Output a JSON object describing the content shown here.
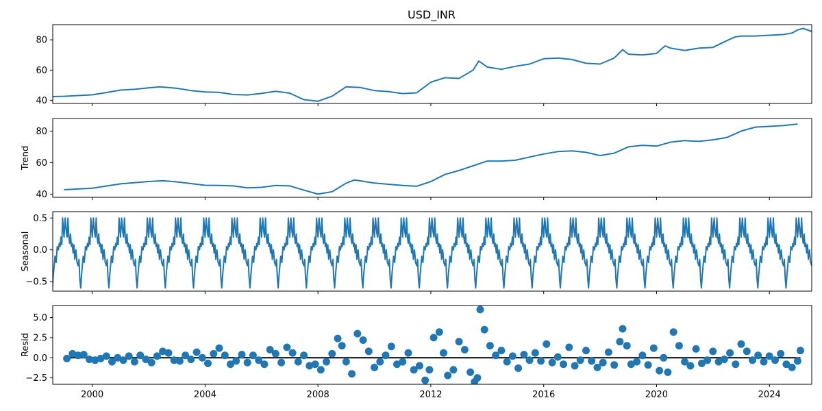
{
  "chart_data": [
    {
      "type": "line",
      "title": "USD_INR",
      "ylabel": "",
      "xlim": [
        1998.6,
        2025.5
      ],
      "ylim": [
        38,
        90
      ],
      "yticks": [
        40,
        60,
        80
      ],
      "ytick_labels": [
        "40",
        "60",
        "80"
      ],
      "color": "#1f77b4",
      "series": [
        {
          "x": [
            1998.6,
            1999.0,
            1999.5,
            2000.0,
            2000.5,
            2001.0,
            2001.5,
            2002.0,
            2002.4,
            2003.0,
            2003.5,
            2004.0,
            2004.5,
            2005.0,
            2005.5,
            2006.0,
            2006.5,
            2007.0,
            2007.5,
            2008.0,
            2008.5,
            2009.0,
            2009.5,
            2010.0,
            2010.5,
            2011.0,
            2011.5,
            2012.0,
            2012.5,
            2013.0,
            2013.5,
            2013.7,
            2014.0,
            2014.5,
            2015.0,
            2015.5,
            2016.0,
            2016.5,
            2017.0,
            2017.5,
            2018.0,
            2018.5,
            2018.8,
            2019.0,
            2019.5,
            2020.0,
            2020.3,
            2020.5,
            2021.0,
            2021.5,
            2022.0,
            2022.5,
            2022.8,
            2023.0,
            2023.5,
            2024.0,
            2024.5,
            2024.8,
            2025.0,
            2025.2,
            2025.5
          ],
          "y": [
            42.5,
            42.7,
            43.2,
            43.7,
            45.2,
            46.8,
            47.3,
            48.3,
            49.0,
            48.0,
            46.5,
            45.6,
            45.3,
            43.9,
            43.6,
            44.6,
            46.0,
            44.8,
            40.5,
            39.5,
            42.8,
            49.0,
            48.5,
            46.5,
            45.8,
            44.5,
            45.0,
            52.0,
            55.0,
            54.5,
            60.0,
            66.0,
            62.0,
            60.5,
            62.5,
            64.0,
            67.5,
            68.0,
            67.0,
            64.5,
            64.0,
            68.0,
            73.5,
            70.5,
            70.0,
            71.0,
            76.0,
            74.5,
            73.0,
            74.5,
            75.0,
            79.5,
            82.0,
            82.5,
            82.5,
            83.0,
            83.5,
            84.5,
            86.5,
            87.5,
            85.5
          ]
        }
      ]
    },
    {
      "type": "line",
      "title": "",
      "ylabel": "Trend",
      "xlim": [
        1998.6,
        2025.5
      ],
      "ylim": [
        38,
        88
      ],
      "yticks": [
        40,
        60,
        80
      ],
      "ytick_labels": [
        "40",
        "60",
        "80"
      ],
      "color": "#1f77b4",
      "series": [
        {
          "x": [
            1999.0,
            2000.0,
            2001.0,
            2002.0,
            2002.5,
            2003.0,
            2004.0,
            2004.5,
            2005.0,
            2005.5,
            2006.0,
            2006.5,
            2007.0,
            2007.5,
            2008.0,
            2008.5,
            2009.0,
            2009.3,
            2010.0,
            2011.0,
            2011.5,
            2012.0,
            2012.5,
            2013.0,
            2013.5,
            2014.0,
            2014.5,
            2015.0,
            2015.5,
            2016.0,
            2016.5,
            2017.0,
            2017.5,
            2018.0,
            2018.5,
            2019.0,
            2019.5,
            2020.0,
            2020.5,
            2021.0,
            2021.5,
            2022.0,
            2022.5,
            2023.0,
            2023.5,
            2024.0,
            2024.5,
            2025.0
          ],
          "y": [
            42.8,
            43.8,
            46.5,
            48.0,
            48.5,
            47.8,
            45.6,
            45.5,
            45.2,
            44.0,
            44.3,
            45.5,
            45.2,
            42.5,
            40.0,
            41.5,
            47.0,
            49.0,
            47.0,
            45.5,
            45.0,
            48.0,
            52.5,
            55.0,
            58.0,
            61.0,
            61.0,
            61.5,
            63.5,
            65.5,
            67.0,
            67.5,
            66.5,
            64.5,
            66.0,
            70.0,
            71.0,
            70.5,
            73.0,
            74.0,
            73.5,
            74.5,
            76.0,
            80.0,
            82.5,
            83.0,
            83.5,
            84.5
          ]
        }
      ]
    },
    {
      "type": "line",
      "title": "",
      "ylabel": "Seasonal",
      "xlim": [
        1998.6,
        2025.5
      ],
      "ylim": [
        -0.65,
        0.6
      ],
      "yticks": [
        -0.5,
        0.0,
        0.5
      ],
      "ytick_labels": [
        "−0.5",
        "0.0",
        "0.5"
      ],
      "color": "#1f77b4",
      "series": [
        {
          "period_years": 1,
          "pattern_t": [
            0.0,
            0.04,
            0.08,
            0.11,
            0.14,
            0.17,
            0.2,
            0.23,
            0.26,
            0.29,
            0.32,
            0.35,
            0.38,
            0.42,
            0.46,
            0.5,
            0.53,
            0.56,
            0.59,
            0.62,
            0.65,
            0.68,
            0.72,
            0.76,
            0.8,
            0.83,
            0.86,
            0.89,
            0.92,
            0.95,
            1.0
          ],
          "pattern_y": [
            0.2,
            0.5,
            0.28,
            0.2,
            0.5,
            0.2,
            0.1,
            0.25,
            0.05,
            0.1,
            -0.05,
            0.08,
            -0.15,
            0.0,
            -0.2,
            -0.25,
            -0.15,
            -0.45,
            -0.6,
            -0.4,
            -0.25,
            -0.1,
            -0.2,
            0.05,
            0.0,
            0.1,
            0.05,
            0.2,
            0.08,
            0.5,
            0.2
          ]
        }
      ]
    },
    {
      "type": "scatter",
      "title": "",
      "ylabel": "Resid",
      "xlabel": "",
      "xlim": [
        1998.6,
        2025.5
      ],
      "ylim": [
        -3.3,
        6.5
      ],
      "yticks": [
        -2.5,
        0.0,
        2.5,
        5.0
      ],
      "ytick_labels": [
        "−2.5",
        "0.0",
        "2.5",
        "5.0"
      ],
      "xticks": [
        2000,
        2004,
        2008,
        2012,
        2016,
        2020,
        2024
      ],
      "xtick_labels": [
        "2000",
        "2004",
        "2008",
        "2012",
        "2016",
        "2020",
        "2024"
      ],
      "zero_line": true,
      "color": "#1f77b4",
      "series": [
        {
          "x": [
            1999.1,
            1999.3,
            1999.5,
            1999.7,
            1999.9,
            2000.1,
            2000.3,
            2000.5,
            2000.7,
            2000.9,
            2001.1,
            2001.3,
            2001.5,
            2001.7,
            2001.9,
            2002.1,
            2002.3,
            2002.5,
            2002.7,
            2002.9,
            2003.1,
            2003.3,
            2003.5,
            2003.7,
            2003.9,
            2004.1,
            2004.3,
            2004.5,
            2004.7,
            2004.9,
            2005.1,
            2005.3,
            2005.5,
            2005.7,
            2005.9,
            2006.1,
            2006.3,
            2006.5,
            2006.7,
            2006.9,
            2007.1,
            2007.3,
            2007.5,
            2007.7,
            2007.9,
            2008.1,
            2008.3,
            2008.5,
            2008.7,
            2008.85,
            2009.0,
            2009.2,
            2009.4,
            2009.6,
            2009.8,
            2010.0,
            2010.2,
            2010.4,
            2010.6,
            2010.8,
            2011.0,
            2011.2,
            2011.4,
            2011.6,
            2011.8,
            2011.95,
            2012.1,
            2012.3,
            2012.45,
            2012.6,
            2012.8,
            2013.0,
            2013.2,
            2013.4,
            2013.55,
            2013.65,
            2013.75,
            2013.9,
            2014.1,
            2014.3,
            2014.5,
            2014.7,
            2014.9,
            2015.1,
            2015.3,
            2015.5,
            2015.7,
            2015.9,
            2016.1,
            2016.3,
            2016.5,
            2016.7,
            2016.9,
            2017.1,
            2017.3,
            2017.5,
            2017.7,
            2017.9,
            2018.1,
            2018.3,
            2018.5,
            2018.7,
            2018.8,
            2018.95,
            2019.1,
            2019.3,
            2019.5,
            2019.7,
            2019.9,
            2020.1,
            2020.25,
            2020.4,
            2020.6,
            2020.8,
            2021.0,
            2021.2,
            2021.4,
            2021.6,
            2021.8,
            2022.0,
            2022.2,
            2022.4,
            2022.6,
            2022.8,
            2023.0,
            2023.2,
            2023.4,
            2023.6,
            2023.8,
            2024.0,
            2024.2,
            2024.4,
            2024.6,
            2024.8,
            2025.0,
            2025.1
          ],
          "y": [
            -0.1,
            0.5,
            0.3,
            0.4,
            -0.2,
            -0.3,
            -0.1,
            0.2,
            -0.5,
            0.0,
            -0.3,
            0.2,
            -0.5,
            0.3,
            -0.2,
            -0.6,
            0.2,
            0.8,
            0.6,
            -0.3,
            -0.4,
            0.3,
            -0.2,
            0.7,
            0.0,
            -0.7,
            0.5,
            1.2,
            0.3,
            -0.8,
            -0.4,
            0.4,
            -0.6,
            0.3,
            -0.3,
            -0.8,
            1.0,
            0.5,
            -0.6,
            1.3,
            0.6,
            -0.5,
            0.3,
            -1.0,
            -0.8,
            -1.5,
            -0.5,
            0.5,
            2.4,
            1.5,
            -0.5,
            -2.0,
            3.0,
            2.2,
            0.8,
            -1.2,
            -0.5,
            0.3,
            1.4,
            -0.8,
            -0.5,
            0.6,
            -1.5,
            -1.0,
            -2.8,
            -1.5,
            2.5,
            3.2,
            0.6,
            -2.2,
            -1.5,
            2.0,
            1.0,
            -1.8,
            -3.0,
            -2.5,
            6.0,
            3.5,
            1.5,
            0.3,
            0.9,
            -0.5,
            0.2,
            -1.3,
            0.4,
            -0.3,
            0.6,
            -0.4,
            1.7,
            -0.6,
            0.1,
            -0.8,
            1.3,
            -1.0,
            -0.3,
            0.9,
            -0.4,
            -1.2,
            -0.6,
            0.7,
            -0.9,
            2.0,
            3.6,
            1.5,
            -0.8,
            -0.5,
            0.3,
            -0.9,
            1.2,
            -1.6,
            0.0,
            -1.8,
            3.2,
            1.5,
            -0.5,
            -1.0,
            1.1,
            -0.7,
            -0.3,
            0.8,
            -0.5,
            -0.2,
            0.6,
            -0.8,
            1.7,
            0.8,
            -0.3,
            0.3,
            -0.5,
            0.2,
            -0.3,
            0.5,
            -0.8,
            -1.2,
            -0.4,
            0.9
          ]
        }
      ]
    }
  ]
}
